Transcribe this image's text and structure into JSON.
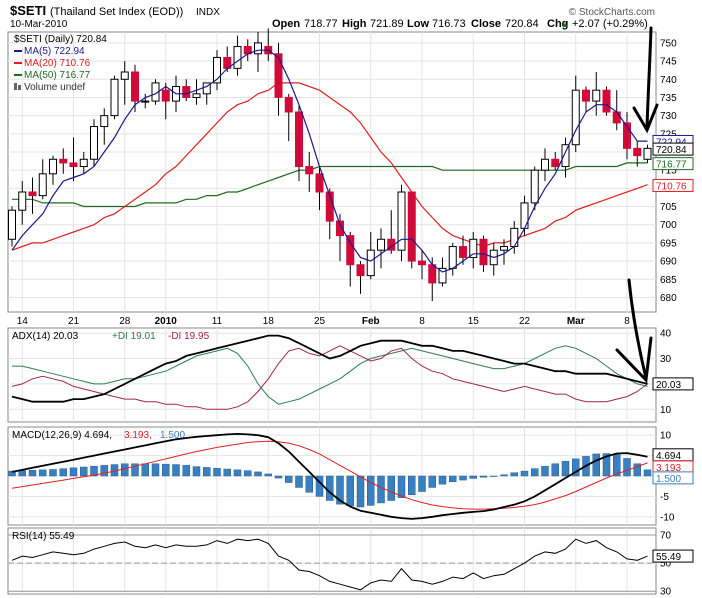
{
  "header": {
    "symbol": "$SETI",
    "name": "(Thailand Set Index (EOD))",
    "exchange": "INDX",
    "date": "10-Mar-2010",
    "brand": "© StockCharts.com",
    "open_label": "Open",
    "open": "718.77",
    "high_label": "High",
    "high": "721.89",
    "low_label": "Low",
    "low": "716.73",
    "close_label": "Close",
    "close": "720.84",
    "chg_label": "Chg",
    "chg": "+2.07 (+0.29%)",
    "chg_arrow": "▲"
  },
  "legend": {
    "main": "$SETI (Daily) 720.84",
    "ma5": "MA(5) 722.94",
    "ma20": "MA(20) 710.76",
    "ma50": "MA(50) 716.77",
    "volume": "Volume undef",
    "adx_label": "ADX(14) 20.03",
    "pdi_label": "+DI 19.01",
    "mdi_label": "-DI 19.95",
    "macd_label": "MACD(12,26,9) 4.694,",
    "macd_signal": "3.193,",
    "macd_hist": "1.500",
    "rsi_label": "RSI(14) 55.49"
  },
  "colors": {
    "up": "#ffffff",
    "down": "#d10a3a",
    "ma5": "#1a1a8c",
    "ma20": "#e02020",
    "ma50": "#1f6b1f",
    "adx": "#000000",
    "pdi": "#2e7d4f",
    "mdi": "#a0264b",
    "macd": "#000000",
    "signal": "#e02020",
    "hist": "#3a7fc0",
    "rsi": "#000000"
  },
  "chart_data": [
    {
      "type": "candlestick",
      "panel": "price",
      "y_range": [
        676,
        753
      ],
      "y_ticks": [
        680,
        685,
        690,
        695,
        700,
        705,
        710,
        715,
        720,
        725,
        730,
        735,
        740,
        745,
        750
      ],
      "x_ticks": [
        {
          "label": "14",
          "index": 1
        },
        {
          "label": "21",
          "index": 6
        },
        {
          "label": "28",
          "index": 11
        },
        {
          "label": "2010",
          "index": 15,
          "bold": true
        },
        {
          "label": "11",
          "index": 20
        },
        {
          "label": "18",
          "index": 25
        },
        {
          "label": "25",
          "index": 30
        },
        {
          "label": "Feb",
          "index": 35,
          "bold": true
        },
        {
          "label": "8",
          "index": 40
        },
        {
          "label": "15",
          "index": 45
        },
        {
          "label": "22",
          "index": 50
        },
        {
          "label": "Mar",
          "index": 55,
          "bold": true
        },
        {
          "label": "8",
          "index": 60
        }
      ],
      "ohlc": [
        [
          696,
          705,
          694,
          704
        ],
        [
          704,
          712,
          700,
          709
        ],
        [
          709,
          713,
          703,
          708
        ],
        [
          708,
          718,
          707,
          714
        ],
        [
          714,
          719,
          711,
          718
        ],
        [
          718,
          721,
          714,
          717
        ],
        [
          717,
          724,
          712,
          716
        ],
        [
          716,
          720,
          714,
          718
        ],
        [
          718,
          729,
          716,
          727
        ],
        [
          727,
          732,
          722,
          730
        ],
        [
          730,
          741,
          729,
          740
        ],
        [
          740,
          745,
          733,
          742
        ],
        [
          742,
          744,
          731,
          734
        ],
        [
          734,
          736,
          732,
          734
        ],
        [
          734,
          740,
          733,
          739
        ],
        [
          737,
          739,
          729,
          734
        ],
        [
          734,
          741,
          731,
          738
        ],
        [
          738,
          740,
          734,
          735
        ],
        [
          735,
          740,
          733,
          736
        ],
        [
          736,
          739,
          733,
          739
        ],
        [
          739,
          748,
          737,
          746
        ],
        [
          746,
          749,
          742,
          743
        ],
        [
          743,
          752,
          741,
          749
        ],
        [
          749,
          751,
          745,
          747
        ],
        [
          747,
          753,
          742,
          750
        ],
        [
          749,
          754,
          745,
          747
        ],
        [
          747,
          750,
          730,
          735
        ],
        [
          735,
          736,
          723,
          731
        ],
        [
          731,
          733,
          712,
          716
        ],
        [
          716,
          720,
          709,
          714
        ],
        [
          714,
          716,
          704,
          709
        ],
        [
          709,
          710,
          696,
          701
        ],
        [
          701,
          703,
          690,
          697
        ],
        [
          697,
          698,
          683,
          689
        ],
        [
          689,
          690,
          681,
          686
        ],
        [
          686,
          698,
          685,
          693
        ],
        [
          693,
          699,
          688,
          696
        ],
        [
          696,
          704,
          692,
          693
        ],
        [
          693,
          711,
          690,
          709
        ],
        [
          709,
          709,
          688,
          690
        ],
        [
          690,
          693,
          685,
          689
        ],
        [
          689,
          691,
          679,
          684
        ],
        [
          684,
          691,
          683,
          688
        ],
        [
          688,
          695,
          686,
          694
        ],
        [
          694,
          697,
          689,
          691
        ],
        [
          691,
          698,
          688,
          696
        ],
        [
          696,
          697,
          687,
          689
        ],
        [
          689,
          695,
          686,
          693
        ],
        [
          693,
          696,
          689,
          694
        ],
        [
          694,
          701,
          692,
          699
        ],
        [
          699,
          708,
          697,
          706
        ],
        [
          706,
          716,
          704,
          715
        ],
        [
          715,
          721,
          712,
          718
        ],
        [
          718,
          720,
          715,
          716
        ],
        [
          716,
          724,
          713,
          722
        ],
        [
          722,
          741,
          720,
          737
        ],
        [
          737,
          738,
          731,
          734
        ],
        [
          734,
          742,
          730,
          737
        ],
        [
          737,
          738,
          730,
          731
        ],
        [
          731,
          737,
          726,
          728
        ],
        [
          728,
          731,
          718,
          721
        ],
        [
          721,
          723,
          716,
          719
        ],
        [
          718,
          722,
          717,
          721
        ]
      ],
      "series": [
        {
          "name": "MA(5)",
          "values": [
            693,
            697,
            700,
            703,
            708,
            712,
            713,
            714,
            716,
            720,
            724,
            729,
            733,
            735,
            736,
            738,
            736,
            736,
            737,
            738,
            740,
            743,
            745,
            747,
            748,
            748,
            746,
            740,
            733,
            725,
            716,
            708,
            700,
            695,
            691,
            690,
            692,
            694,
            696,
            696,
            693,
            689,
            687,
            688,
            690,
            692,
            692,
            691,
            692,
            694,
            699,
            705,
            710,
            714,
            720,
            726,
            731,
            733,
            733,
            731,
            727,
            723,
            723
          ]
        },
        {
          "name": "MA(20)",
          "values": [
            693,
            694,
            695,
            695,
            696,
            697,
            698,
            699,
            700,
            702,
            703,
            705,
            707,
            709,
            711,
            714,
            716,
            719,
            722,
            725,
            728,
            731,
            733,
            734,
            736,
            737,
            739,
            739,
            739,
            738,
            737,
            735,
            733,
            731,
            728,
            724,
            720,
            717,
            713,
            709,
            705,
            702,
            699,
            697,
            696,
            695,
            694,
            695,
            695,
            696,
            697,
            698,
            699,
            701,
            702,
            704,
            705,
            706,
            707,
            708,
            709,
            710,
            711
          ]
        },
        {
          "name": "MA(50)",
          "values": [
            707,
            707,
            707,
            706,
            706,
            706,
            706,
            705,
            705,
            705,
            705,
            705,
            705,
            706,
            706,
            706,
            706,
            707,
            707,
            708,
            708,
            709,
            709,
            710,
            711,
            712,
            713,
            714,
            715,
            715,
            716,
            716,
            716,
            716,
            716,
            716,
            716,
            716,
            716,
            716,
            716,
            716,
            715,
            715,
            715,
            715,
            715,
            715,
            715,
            715,
            715,
            715,
            715,
            715,
            715,
            716,
            716,
            716,
            716,
            716,
            717,
            717,
            717
          ]
        }
      ],
      "price_labels": [
        {
          "value": "722.94",
          "y": 722.9
        },
        {
          "value": "720.84",
          "y": 720.8
        },
        {
          "value": "716.77",
          "y": 716.8
        },
        {
          "value": "710.76",
          "y": 710.8
        }
      ]
    },
    {
      "type": "line",
      "panel": "adx",
      "y_range": [
        5,
        42
      ],
      "y_ticks": [
        10,
        20,
        30,
        40
      ],
      "last_value": "20.03",
      "series": [
        {
          "name": "ADX",
          "values": [
            15,
            14,
            13,
            13,
            13,
            13,
            14,
            14,
            15,
            16,
            18,
            20,
            22,
            24,
            26,
            28,
            29,
            31,
            32,
            33,
            34,
            35,
            36,
            37,
            38,
            39,
            39,
            38,
            36,
            34,
            32,
            30,
            31,
            33,
            35,
            36,
            37,
            37,
            37,
            36,
            35,
            35,
            34,
            33,
            33,
            32,
            31,
            30,
            29,
            28,
            28,
            27,
            26,
            25,
            25,
            24,
            24,
            24,
            24,
            23,
            22,
            21,
            20
          ]
        },
        {
          "name": "+DI",
          "values": [
            27,
            27,
            26,
            25,
            24,
            23,
            22,
            21,
            20,
            20,
            21,
            22,
            22,
            23,
            24,
            25,
            27,
            29,
            31,
            32,
            33,
            34,
            32,
            27,
            20,
            15,
            12,
            13,
            14,
            16,
            18,
            20,
            22,
            25,
            28,
            30,
            31,
            32,
            33,
            34,
            33,
            32,
            31,
            30,
            29,
            28,
            27,
            26,
            26,
            27,
            28,
            30,
            32,
            34,
            35,
            34,
            32,
            30,
            27,
            24,
            22,
            20,
            19
          ]
        },
        {
          "name": "-DI",
          "values": [
            19,
            20,
            22,
            23,
            22,
            21,
            19,
            18,
            17,
            16,
            15,
            14,
            14,
            13,
            13,
            12,
            12,
            11,
            11,
            10,
            10,
            10,
            11,
            13,
            17,
            22,
            28,
            33,
            34,
            32,
            31,
            33,
            35,
            33,
            31,
            29,
            30,
            33,
            34,
            30,
            27,
            25,
            24,
            22,
            21,
            20,
            19,
            18,
            17,
            18,
            19,
            18,
            17,
            16,
            16,
            14,
            13,
            13,
            13,
            14,
            15,
            17,
            20
          ]
        }
      ]
    },
    {
      "type": "bar+line",
      "panel": "macd",
      "y_range": [
        -12,
        12
      ],
      "y_ticks": [
        -10,
        -5,
        0,
        5,
        10
      ],
      "last_values": [
        "4.694",
        "3.193",
        "1.500"
      ],
      "series": [
        {
          "name": "MACD",
          "values": [
            1,
            1.5,
            2,
            2.5,
            3,
            3.5,
            4,
            4.5,
            5,
            5.5,
            6,
            6.5,
            7,
            7.5,
            8,
            8.5,
            9,
            9.3,
            9.6,
            9.8,
            10,
            10.2,
            10.3,
            10.2,
            10,
            9.5,
            8,
            6,
            3.5,
            1,
            -1.5,
            -4,
            -6,
            -7.5,
            -8.5,
            -9,
            -9.5,
            -10,
            -10.3,
            -10.5,
            -10.3,
            -10,
            -9.6,
            -9.3,
            -9,
            -8.8,
            -8.6,
            -8.2,
            -7.6,
            -7,
            -6.2,
            -5,
            -3.5,
            -2,
            -0.5,
            1,
            2.5,
            3.8,
            4.8,
            5.5,
            5.6,
            5.2,
            4.7
          ]
        },
        {
          "name": "Signal",
          "values": [
            -3,
            -2.6,
            -2.2,
            -1.8,
            -1.4,
            -1,
            -0.6,
            -0.2,
            0.2,
            0.7,
            1.2,
            1.8,
            2.4,
            3,
            3.6,
            4.2,
            4.8,
            5.4,
            6,
            6.5,
            7,
            7.4,
            7.8,
            8.2,
            8.4,
            8.5,
            8.4,
            8,
            7.4,
            6.5,
            5.4,
            4,
            2.6,
            1.2,
            -0.2,
            -1.6,
            -2.8,
            -3.9,
            -4.9,
            -5.8,
            -6.5,
            -7.1,
            -7.5,
            -7.8,
            -8,
            -8.1,
            -8.1,
            -8,
            -7.9,
            -7.7,
            -7.4,
            -7,
            -6.4,
            -5.6,
            -4.8,
            -3.8,
            -2.7,
            -1.6,
            -0.5,
            0.5,
            1.4,
            2.3,
            3.2
          ]
        },
        {
          "name": "Histogram",
          "values": [
            1.2,
            1.3,
            1.4,
            1.5,
            1.6,
            1.8,
            2,
            2.2,
            2.4,
            2.6,
            2.8,
            3,
            3,
            3,
            3,
            2.9,
            2.8,
            2.6,
            2.3,
            2.1,
            1.9,
            1.7,
            1.5,
            1.3,
            1,
            0.5,
            -0.5,
            -1.6,
            -2.8,
            -4,
            -5,
            -6,
            -6.9,
            -7.3,
            -7.6,
            -7.2,
            -6.6,
            -6,
            -5.3,
            -4.6,
            -3.8,
            -2.8,
            -2,
            -1.4,
            -1,
            -0.6,
            -0.3,
            -0.1,
            0.3,
            0.8,
            1.2,
            1.8,
            2.4,
            3,
            3.6,
            4.2,
            4.8,
            5.4,
            5.5,
            5.2,
            4.3,
            3,
            1.5
          ]
        }
      ]
    },
    {
      "type": "line",
      "panel": "rsi",
      "y_range": [
        28,
        75
      ],
      "y_ticks": [
        30,
        50,
        70
      ],
      "reference_lines": [
        70,
        30
      ],
      "last_value": "55.49",
      "series": [
        {
          "name": "RSI",
          "values": [
            52,
            55,
            54,
            56,
            58,
            57,
            56,
            57,
            60,
            62,
            64,
            65,
            62,
            61,
            63,
            61,
            63,
            62,
            62,
            63,
            66,
            64,
            67,
            66,
            67,
            64,
            55,
            52,
            45,
            44,
            41,
            37,
            35,
            33,
            31,
            36,
            38,
            37,
            46,
            38,
            37,
            35,
            37,
            40,
            39,
            43,
            39,
            41,
            42,
            46,
            50,
            55,
            58,
            57,
            60,
            67,
            64,
            66,
            61,
            58,
            53,
            52,
            55
          ]
        }
      ]
    }
  ]
}
